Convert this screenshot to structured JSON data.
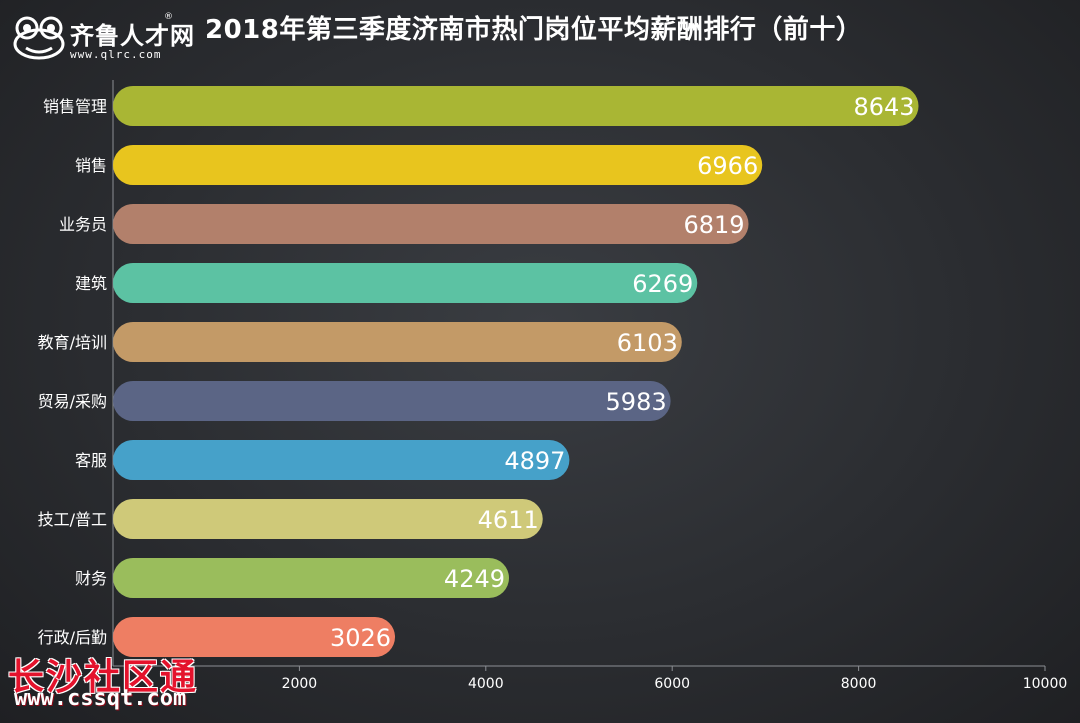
{
  "logo": {
    "name": "齐鲁人才网",
    "reg_mark": "®",
    "url": "www.qlrc.com",
    "icon": "frog-icon"
  },
  "watermark": {
    "name": "长沙社区通",
    "url": "www.cssqt.com"
  },
  "chart_data": {
    "type": "bar",
    "orientation": "horizontal",
    "title": "2018年第三季度济南市热门岗位平均薪酬排行（前十）",
    "xlabel": "",
    "ylabel": "",
    "xlim": [
      0,
      10000
    ],
    "x_ticks": [
      2000,
      4000,
      6000,
      8000,
      10000
    ],
    "grid": false,
    "data_labels": true,
    "categories": [
      "销售管理",
      "销售",
      "业务员",
      "建筑",
      "教育/培训",
      "贸易/采购",
      "客服",
      "技工/普工",
      "财务",
      "行政/后勤"
    ],
    "values": [
      8643,
      6966,
      6819,
      6269,
      6103,
      5983,
      4897,
      4611,
      4249,
      3026
    ],
    "colors": [
      "#a9b634",
      "#e8c51e",
      "#b2806b",
      "#5cc2a3",
      "#c39a67",
      "#5b6585",
      "#46a1c9",
      "#cfc979",
      "#9abd5c",
      "#ee7e63"
    ]
  }
}
